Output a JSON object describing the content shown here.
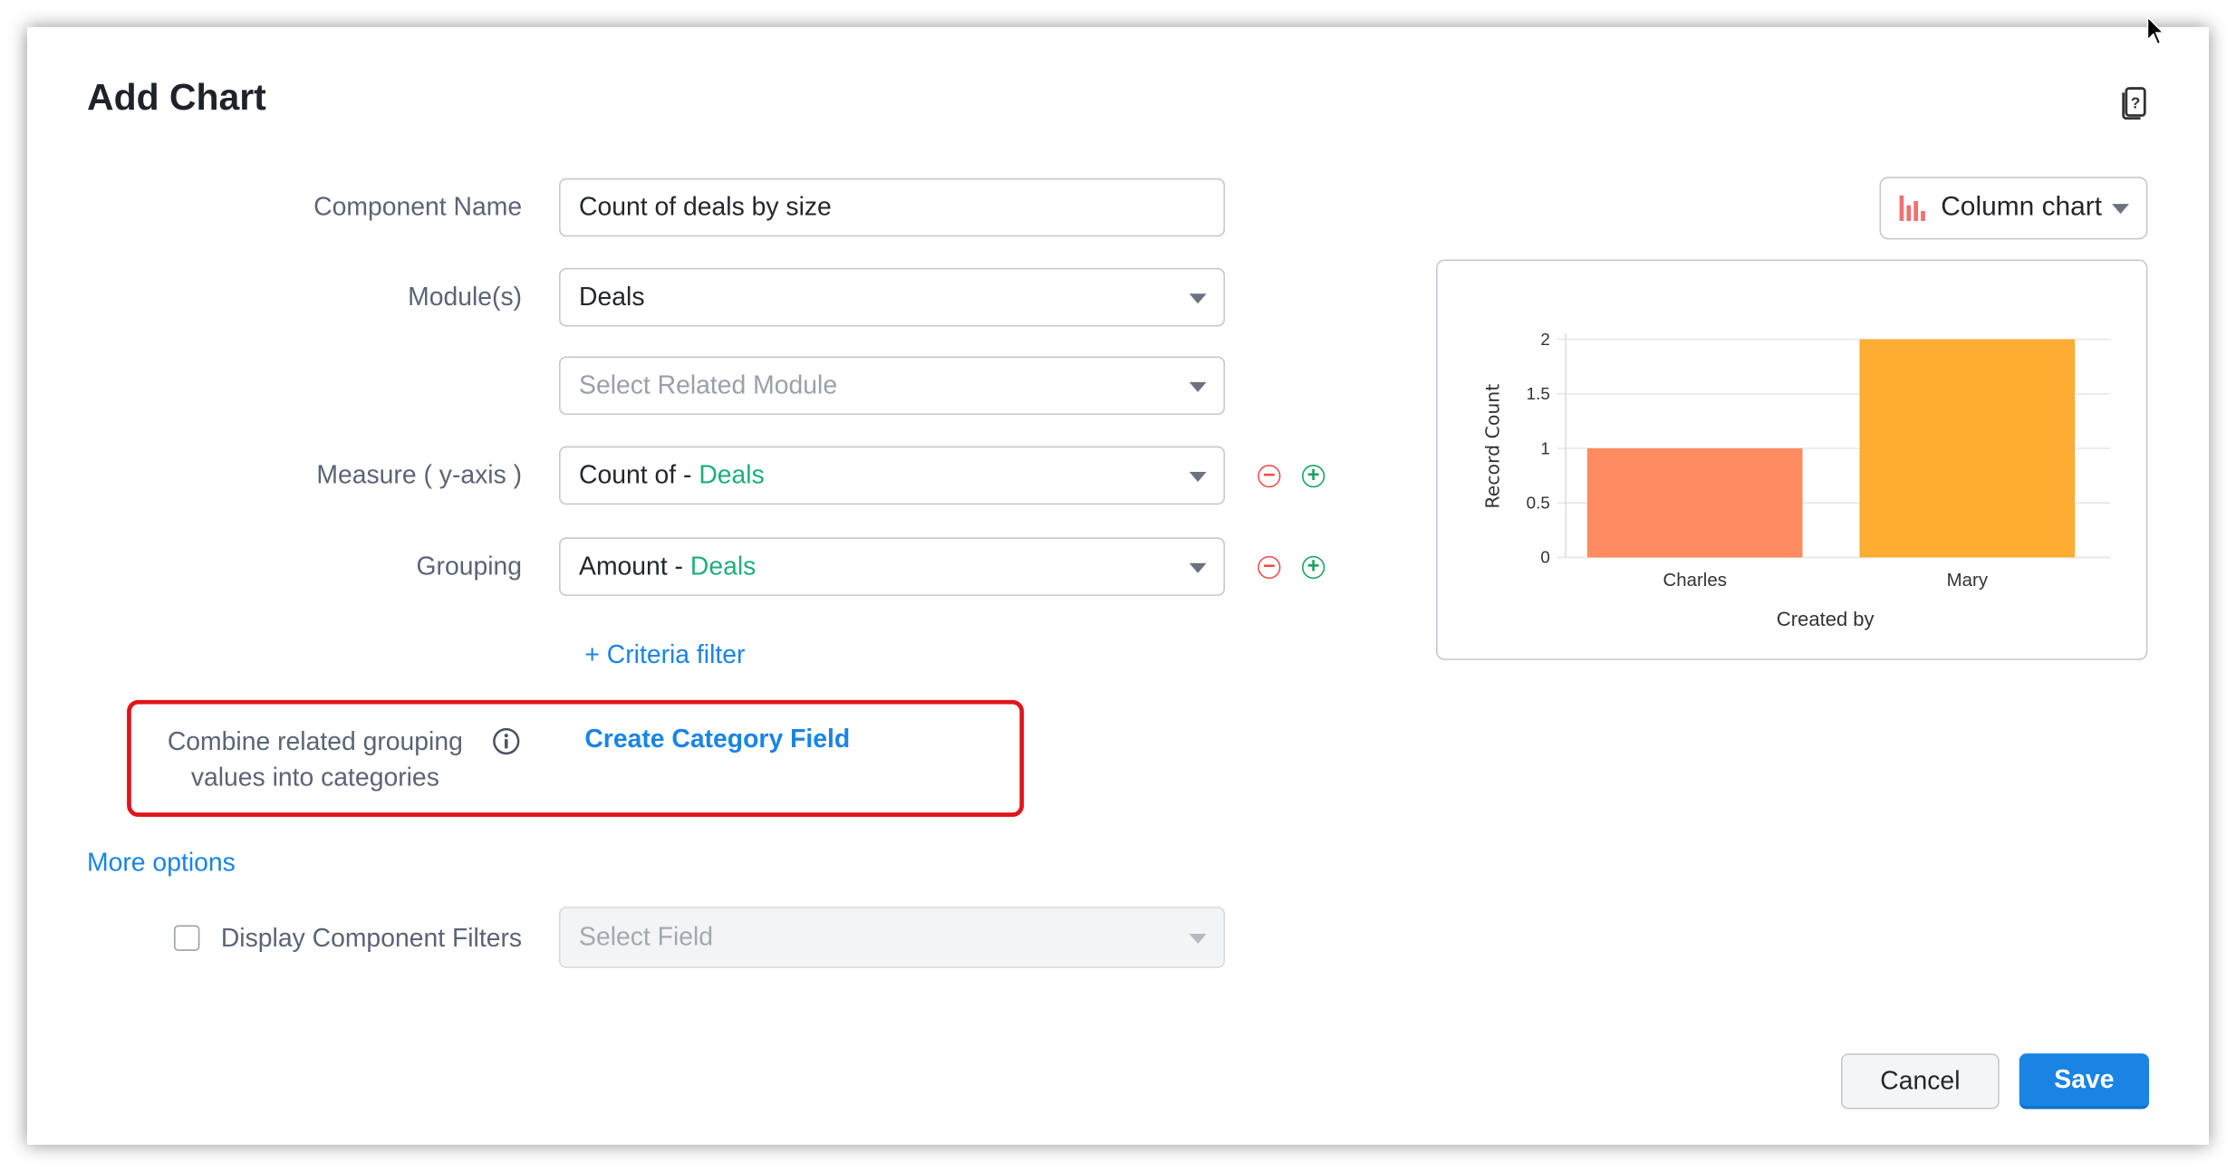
{
  "dialog": {
    "title": "Add Chart",
    "help_icon": "help-book-icon"
  },
  "form": {
    "component_name": {
      "label": "Component Name",
      "value": "Count of deals by size"
    },
    "modules": {
      "label": "Module(s)",
      "value": "Deals",
      "related_placeholder": "Select Related Module"
    },
    "measure": {
      "label": "Measure ( y-axis )",
      "prefix": "Count of - ",
      "module": "Deals"
    },
    "grouping": {
      "label": "Grouping",
      "prefix": "Amount - ",
      "module": "Deals"
    },
    "criteria_filter": "+ Criteria filter",
    "combine": {
      "line1": "Combine related grouping",
      "line2": "values into categories",
      "link": "Create Category Field"
    },
    "more_options": "More options",
    "display_filters": {
      "label": "Display Component Filters",
      "checked": false,
      "placeholder": "Select Field"
    }
  },
  "chart_type": {
    "value": "Column chart",
    "icon": "column-chart-icon"
  },
  "buttons": {
    "cancel": "Cancel",
    "save": "Save"
  },
  "colors": {
    "accent": "#1a84e5",
    "highlight_box": "#e0141b",
    "module_green": "#1fae7b"
  },
  "chart_data": {
    "type": "bar",
    "categories": [
      "Charles",
      "Mary"
    ],
    "values": [
      1,
      2
    ],
    "colors": [
      "#ff8c61",
      "#feac32"
    ],
    "xlabel": "Created by",
    "ylabel": "Record Count",
    "ylim": [
      0,
      2
    ],
    "yticks": [
      "0",
      "0.5",
      "1",
      "1.5",
      "2"
    ],
    "grid": true
  }
}
